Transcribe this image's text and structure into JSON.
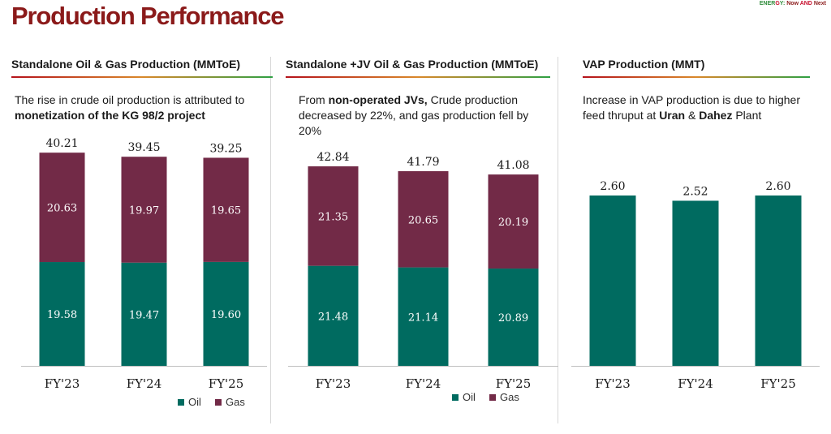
{
  "header": {
    "title": "Production Performance",
    "brand": {
      "p1": "ENER",
      "p2": "G",
      "p3": "Y: ",
      "p4": "Now",
      "p5": " AND ",
      "p6": "Next"
    }
  },
  "colors": {
    "oil": "#006b60",
    "gas": "#722a47",
    "accent": "#8b1a1a"
  },
  "legend": {
    "oil": "Oil",
    "gas": "Gas"
  },
  "panels": [
    {
      "title": "Standalone Oil & Gas Production (MMToE)",
      "text": {
        "p1": "The rise in crude oil production is attributed to ",
        "b1": "monetization of the KG 98/2 project",
        "p2": "",
        "b2": "",
        "p3": ""
      }
    },
    {
      "title": "Standalone +JV Oil & Gas Production (MMToE)",
      "text": {
        "p1": "From ",
        "b1": "non-operated JVs,",
        "p2": " Crude production decreased by 22%, and gas production fell by 20%",
        "b2": "",
        "p3": ""
      }
    },
    {
      "title": "VAP Production (MMT)",
      "text": {
        "p1": "Increase in VAP production is due to higher feed thruput at ",
        "b1": "Uran",
        "p2": " & ",
        "b2": "Dahez",
        "p3": " Plant"
      }
    }
  ],
  "chart_data": [
    {
      "type": "bar",
      "stacked": true,
      "title": "Standalone Oil & Gas Production (MMToE)",
      "categories": [
        "FY'23",
        "FY'24",
        "FY'25"
      ],
      "series": [
        {
          "name": "Oil",
          "values": [
            19.58,
            19.47,
            19.6
          ]
        },
        {
          "name": "Gas",
          "values": [
            20.63,
            19.97,
            19.65
          ]
        }
      ],
      "totals": [
        40.21,
        39.45,
        39.25
      ],
      "legend": "bottom"
    },
    {
      "type": "bar",
      "stacked": true,
      "title": "Standalone +JV Oil & Gas Production (MMToE)",
      "categories": [
        "FY'23",
        "FY'24",
        "FY'25"
      ],
      "series": [
        {
          "name": "Oil",
          "values": [
            21.48,
            21.14,
            20.89
          ]
        },
        {
          "name": "Gas",
          "values": [
            21.35,
            20.65,
            20.19
          ]
        }
      ],
      "totals": [
        42.84,
        41.79,
        41.08
      ],
      "legend": "bottom"
    },
    {
      "type": "bar",
      "stacked": false,
      "title": "VAP Production (MMT)",
      "categories": [
        "FY'23",
        "FY'24",
        "FY'25"
      ],
      "series": [
        {
          "values": [
            2.6,
            2.52,
            2.6
          ]
        }
      ],
      "totals": [
        2.6,
        2.52,
        2.6
      ]
    }
  ]
}
